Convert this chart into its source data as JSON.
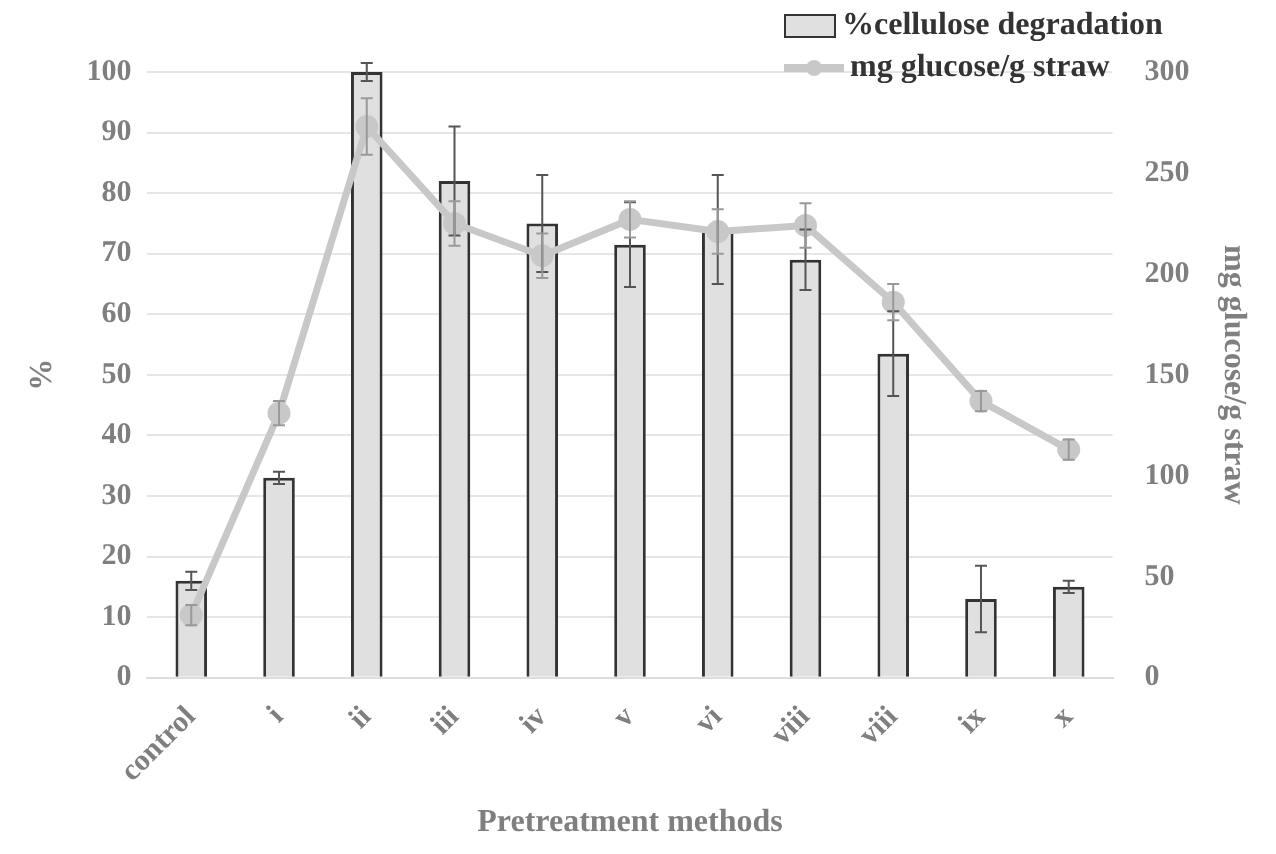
{
  "chart_data": {
    "type": "bar",
    "xlabel": "Pretreatment methods",
    "ylabel": "%",
    "y2label": "mg glucose/g straw",
    "categories": [
      "control",
      "i",
      "ii",
      "iii",
      "iv",
      "v",
      "vi",
      "viii",
      "viii",
      "ix",
      "x"
    ],
    "series": [
      {
        "name": "%cellulose degradation",
        "color": "#e0e0e0",
        "values": [
          16,
          33,
          100,
          82,
          75,
          71.5,
          74,
          69,
          53.5,
          13,
          15
        ],
        "errors": [
          1.5,
          1,
          1.5,
          9,
          8,
          7,
          9,
          5,
          7,
          5.5,
          1
        ]
      },
      {
        "name": "mg glucose/g straw",
        "type": "line",
        "axis": "y2",
        "color": "#c8c8c8",
        "marker": "circle",
        "values": [
          31,
          131,
          273,
          225,
          209,
          227,
          221,
          224,
          186,
          137,
          113
        ],
        "errors": [
          5,
          6,
          14,
          11,
          11,
          9,
          11,
          11,
          9,
          5,
          5
        ]
      }
    ],
    "ylim": [
      0,
      100
    ],
    "yticks": [
      0,
      10,
      20,
      30,
      40,
      50,
      60,
      70,
      80,
      90,
      100
    ],
    "y2lim": [
      0,
      300
    ],
    "y2ticks": [
      0,
      50,
      100,
      150,
      200,
      250,
      300
    ],
    "grid": "y",
    "legend": "top right"
  }
}
